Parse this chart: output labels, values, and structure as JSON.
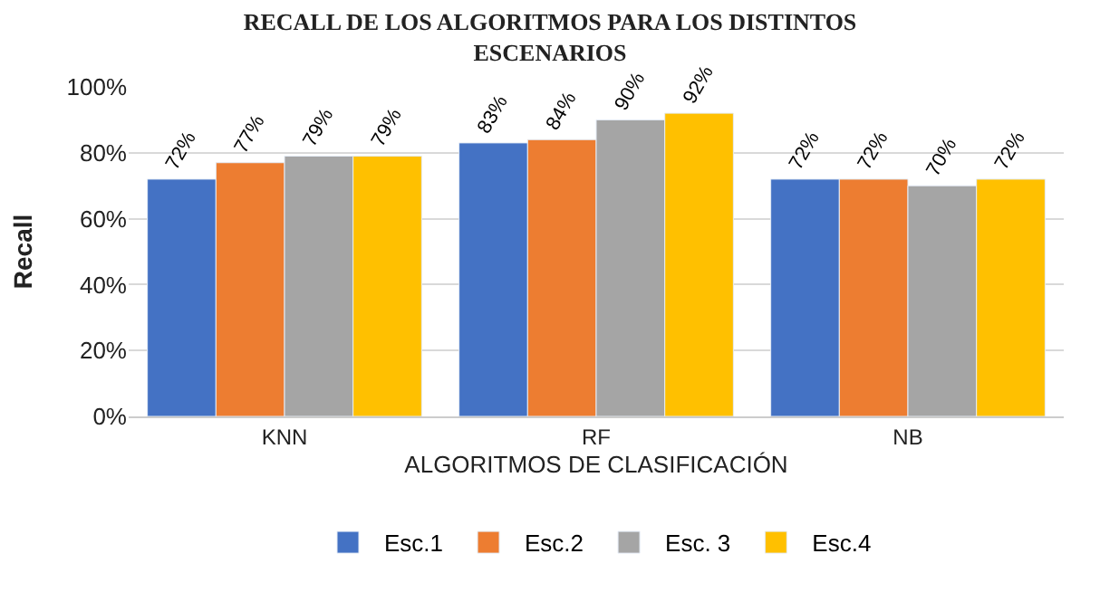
{
  "chart_data": {
    "type": "bar",
    "title": "RECALL DE LOS ALGORITMOS PARA LOS DISTINTOS ESCENARIOS",
    "xlabel": "ALGORITMOS DE CLASIFICACIÓN",
    "ylabel": "Recall",
    "categories": [
      "KNN",
      "RF",
      "NB"
    ],
    "series": [
      {
        "name": "Esc.1",
        "color": "#4472c4",
        "values": [
          72,
          83,
          72
        ],
        "value_labels": [
          "72%",
          "83%",
          "72%"
        ]
      },
      {
        "name": "Esc.2",
        "color": "#ed7d31",
        "values": [
          77,
          84,
          72
        ],
        "value_labels": [
          "77%",
          "84%",
          "72%"
        ]
      },
      {
        "name": "Esc. 3",
        "color": "#a5a5a5",
        "values": [
          79,
          90,
          70
        ],
        "value_labels": [
          "79%",
          "90%",
          "70%"
        ]
      },
      {
        "name": "Esc.4",
        "color": "#ffc000",
        "values": [
          79,
          92,
          72
        ],
        "value_labels": [
          "79%",
          "92%",
          "72%"
        ]
      }
    ],
    "ylim": [
      0,
      100
    ],
    "yticks": [
      {
        "value": 0,
        "label": "0%"
      },
      {
        "value": 20,
        "label": "20%"
      },
      {
        "value": 40,
        "label": "40%"
      },
      {
        "value": 60,
        "label": "60%"
      },
      {
        "value": 80,
        "label": "80%"
      },
      {
        "value": 100,
        "label": "100%"
      }
    ],
    "grid": "y",
    "legend": "bottom"
  }
}
